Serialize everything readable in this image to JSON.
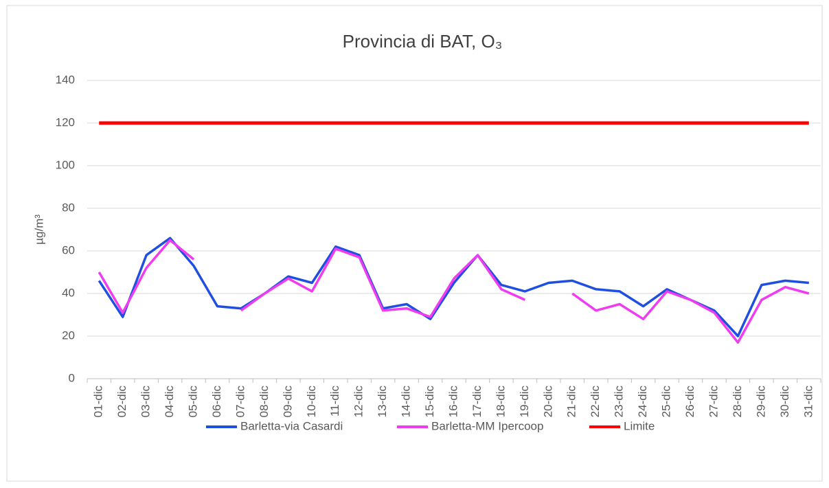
{
  "chart_data": {
    "type": "line",
    "title": "Provincia di BAT, O₃",
    "y_label": "µg/m³",
    "categories": [
      "01-dic",
      "02-dic",
      "03-dic",
      "04-dic",
      "05-dic",
      "06-dic",
      "07-dic",
      "08-dic",
      "09-dic",
      "10-dic",
      "11-dic",
      "12-dic",
      "13-dic",
      "14-dic",
      "15-dic",
      "16-dic",
      "17-dic",
      "18-dic",
      "19-dic",
      "20-dic",
      "21-dic",
      "22-dic",
      "23-dic",
      "24-dic",
      "25-dic",
      "26-dic",
      "27-dic",
      "28-dic",
      "29-dic",
      "30-dic",
      "31-dic"
    ],
    "series": [
      {
        "name": "Barletta-via Casardi",
        "color": "#1f4fe0",
        "values": [
          46,
          29,
          58,
          66,
          53,
          34,
          33,
          40,
          48,
          45,
          62,
          58,
          33,
          35,
          28,
          45,
          58,
          44,
          41,
          45,
          46,
          42,
          41,
          34,
          42,
          37,
          32,
          20,
          44,
          46,
          45
        ]
      },
      {
        "name": "Barletta-MM Ipercoop",
        "color": "#f03cf0",
        "values": [
          50,
          31,
          52,
          65,
          56,
          null,
          32,
          40,
          47,
          41,
          61,
          57,
          32,
          33,
          29,
          47,
          58,
          42,
          37,
          null,
          40,
          32,
          35,
          28,
          41,
          37,
          31,
          17,
          37,
          43,
          40
        ]
      },
      {
        "name": "Limite",
        "color": "#ff0000",
        "values": [
          120,
          120,
          120,
          120,
          120,
          120,
          120,
          120,
          120,
          120,
          120,
          120,
          120,
          120,
          120,
          120,
          120,
          120,
          120,
          120,
          120,
          120,
          120,
          120,
          120,
          120,
          120,
          120,
          120,
          120,
          120
        ]
      }
    ],
    "ylim": [
      0,
      140
    ],
    "yticks": [
      0,
      20,
      40,
      60,
      80,
      100,
      120,
      140
    ],
    "grid": true,
    "legend": "bottom"
  }
}
